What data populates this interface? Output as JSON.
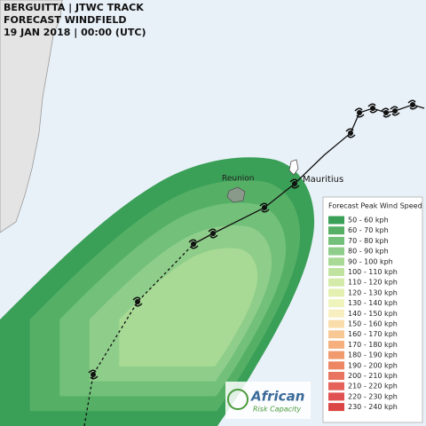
{
  "header": {
    "title_lines": [
      "BERGUITTA | JTWC TRACK",
      "FORECAST WINDFIELD",
      "19 JAN 2018 | 00:00 (UTC)"
    ]
  },
  "places": [
    {
      "label": "Reunion"
    },
    {
      "label": "Mauritius"
    }
  ],
  "legend": {
    "title": "Forecast Peak Wind Speed",
    "items": [
      {
        "label": "50 - 60 kph",
        "color": "#3a9f57"
      },
      {
        "label": "60 - 70 kph",
        "color": "#55b066"
      },
      {
        "label": "70 - 80 kph",
        "color": "#72c07a"
      },
      {
        "label": "80 - 90 kph",
        "color": "#8fce8a"
      },
      {
        "label": "90 - 100 kph",
        "color": "#a8da95"
      },
      {
        "label": "100 - 110 kph",
        "color": "#c0e3a0"
      },
      {
        "label": "110 - 120 kph",
        "color": "#d3eaa8"
      },
      {
        "label": "120 - 130 kph",
        "color": "#e2f0b0"
      },
      {
        "label": "130 - 140 kph",
        "color": "#eef4bc"
      },
      {
        "label": "140 - 150 kph",
        "color": "#f8efc0"
      },
      {
        "label": "150 - 160 kph",
        "color": "#f9deac"
      },
      {
        "label": "160 - 170 kph",
        "color": "#f8c894"
      },
      {
        "label": "170 - 180 kph",
        "color": "#f5b07e"
      },
      {
        "label": "180 - 190 kph",
        "color": "#f19a6e"
      },
      {
        "label": "190 - 200 kph",
        "color": "#ec8663"
      },
      {
        "label": "200 - 210 kph",
        "color": "#e87460"
      },
      {
        "label": "210 - 220 kph",
        "color": "#e4625a"
      },
      {
        "label": "220 - 230 kph",
        "color": "#e05252"
      },
      {
        "label": "230 - 240 kph",
        "color": "#db4545"
      }
    ]
  },
  "logo": {
    "name": "African",
    "subtitle": "Risk Capacity"
  }
}
